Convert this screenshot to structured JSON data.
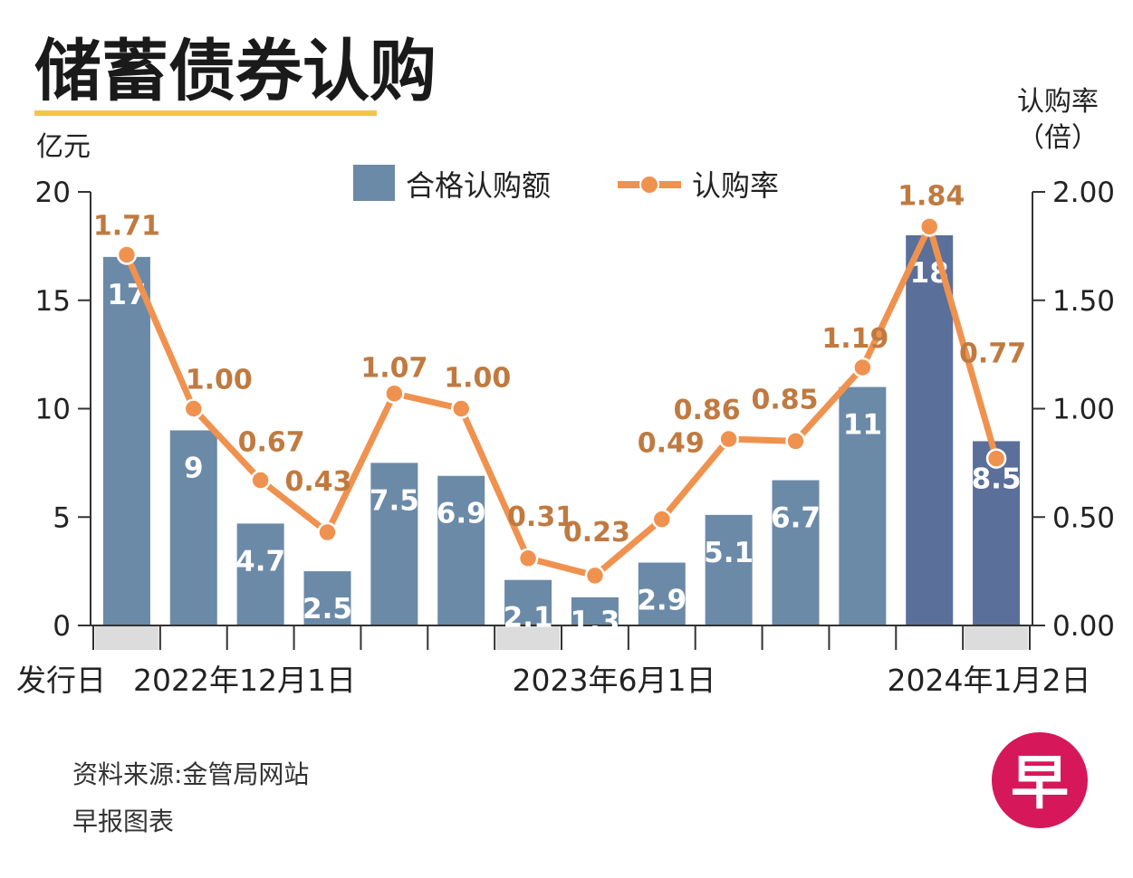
{
  "chart_data": {
    "type": "bar",
    "title": "储蓄债券认购",
    "left_axis_unit": "亿元",
    "right_axis_unit_line1": "认购率",
    "right_axis_unit_line2": "（倍）",
    "left_ylim": [
      0,
      20
    ],
    "left_ticks": [
      "0",
      "5",
      "10",
      "15",
      "20"
    ],
    "right_ylim": [
      0,
      2
    ],
    "right_ticks": [
      "0.00",
      "0.50",
      "1.00",
      "1.50",
      "2.00"
    ],
    "legend": {
      "bar": "合格认购额",
      "line": "认购率"
    },
    "series": [
      {
        "name": "合格认购额",
        "kind": "bar",
        "values": [
          17,
          9,
          4.7,
          2.5,
          7.5,
          6.9,
          2.1,
          1.3,
          2.9,
          5.1,
          6.7,
          11,
          18,
          8.5
        ],
        "labels": [
          "17",
          "9",
          "4.7",
          "2.5",
          "7.5",
          "6.9",
          "2.1",
          "1.3",
          "2.9",
          "5.1",
          "6.7",
          "11",
          "18",
          "8.5"
        ]
      },
      {
        "name": "认购率",
        "kind": "line",
        "values": [
          1.71,
          1.0,
          0.67,
          0.43,
          1.07,
          1.0,
          0.31,
          0.23,
          0.49,
          0.86,
          0.85,
          1.19,
          1.84,
          0.77
        ],
        "labels": [
          "1.71",
          "1.00",
          "0.67",
          "0.43",
          "1.07",
          "1.00",
          "0.31",
          "0.23",
          "0.49",
          "0.86",
          "0.85",
          "1.19",
          "1.84",
          "0.77"
        ]
      }
    ],
    "xlabel": "发行日",
    "x_markers": [
      {
        "index": 0,
        "label": "2022年12月1日"
      },
      {
        "index": 6,
        "label": "2023年6月1日"
      },
      {
        "index": 13,
        "label": "2024年1月2日"
      }
    ]
  },
  "footer": {
    "source": "资料来源:金管局网站",
    "credit": "早报图表"
  },
  "logo": {
    "glyph": "早"
  },
  "colors": {
    "bar": "#6b8aa8",
    "bar_dark": "#5a6f9a",
    "line": "#f0924f",
    "label_orange": "#c07a40",
    "title_underline": "#f2c744",
    "logo_red": "#d6185a"
  }
}
